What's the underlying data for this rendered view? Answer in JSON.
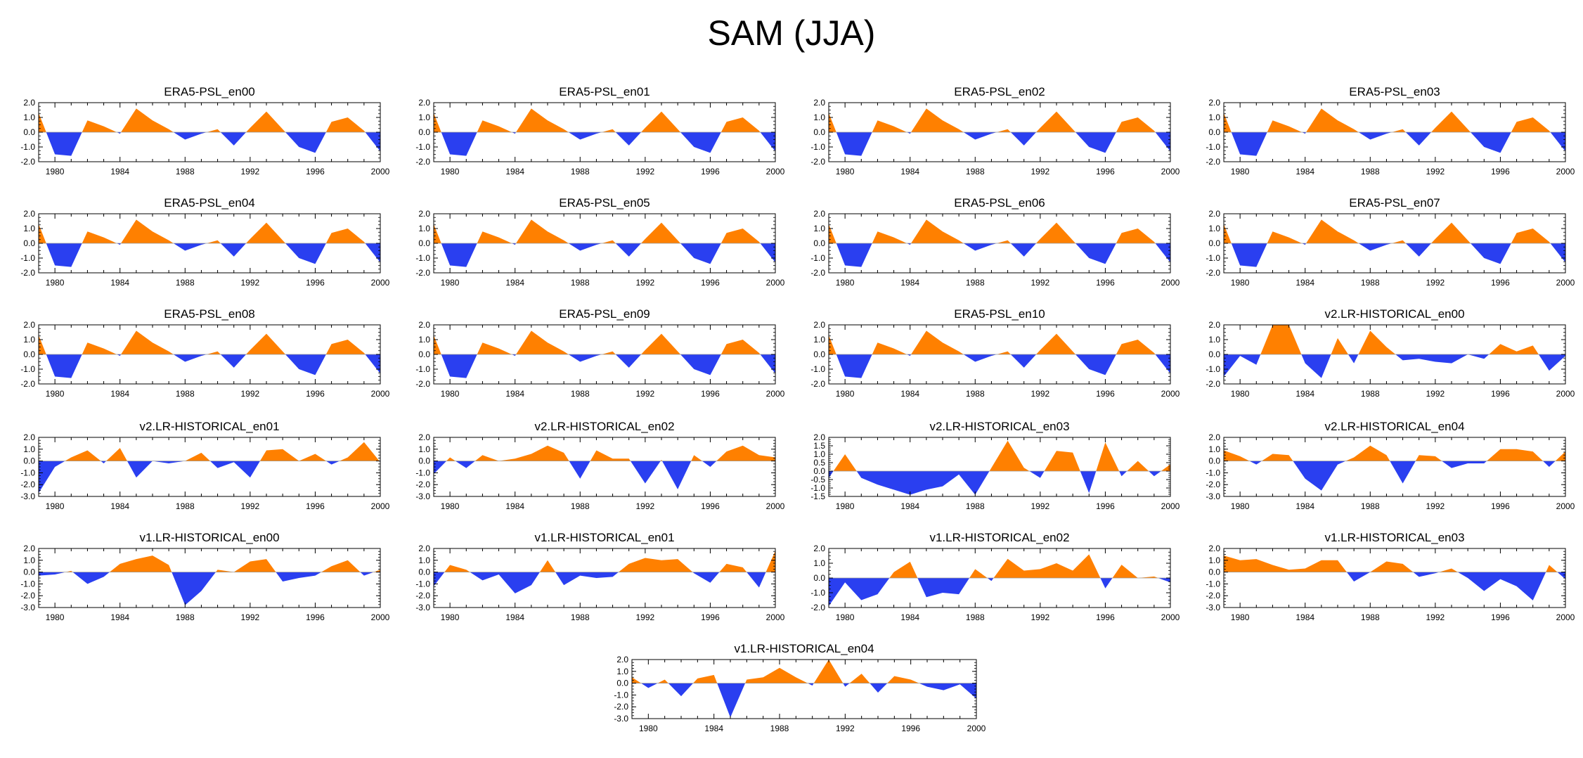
{
  "title": "SAM (JJA)",
  "colors": {
    "positive": "#ff8000",
    "negative": "#2a3ff0",
    "axis": "#000000"
  },
  "x_tick_labels": [
    "1980",
    "1984",
    "1988",
    "1992",
    "1996",
    "2000"
  ],
  "chart_data": [
    {
      "type": "area",
      "title": "ERA5-PSL_en00",
      "xlim": [
        1979,
        2000
      ],
      "ylim": [
        -2,
        2
      ],
      "yticks": [
        "2.0",
        "1.0",
        "0.0",
        "-1.0",
        "-2.0"
      ],
      "x": [
        1979,
        1980,
        1981,
        1982,
        1983,
        1984,
        1985,
        1986,
        1987,
        1988,
        1989,
        1990,
        1991,
        1992,
        1993,
        1994,
        1995,
        1996,
        1997,
        1998,
        1999,
        2000
      ],
      "values": [
        1.3,
        -1.5,
        -1.6,
        0.8,
        0.4,
        -0.1,
        1.6,
        0.8,
        0.2,
        -0.5,
        -0.1,
        0.2,
        -0.9,
        0.3,
        1.4,
        0.2,
        -1.0,
        -1.4,
        0.7,
        1.0,
        0.1,
        -1.3
      ]
    },
    {
      "type": "area",
      "title": "ERA5-PSL_en01",
      "xlim": [
        1979,
        2000
      ],
      "ylim": [
        -2,
        2
      ],
      "yticks": [
        "2.0",
        "1.0",
        "0.0",
        "-1.0",
        "-2.0"
      ],
      "x": [
        1979,
        1980,
        1981,
        1982,
        1983,
        1984,
        1985,
        1986,
        1987,
        1988,
        1989,
        1990,
        1991,
        1992,
        1993,
        1994,
        1995,
        1996,
        1997,
        1998,
        1999,
        2000
      ],
      "values": [
        1.3,
        -1.5,
        -1.6,
        0.8,
        0.4,
        -0.1,
        1.6,
        0.8,
        0.2,
        -0.5,
        -0.1,
        0.2,
        -0.9,
        0.3,
        1.4,
        0.2,
        -1.0,
        -1.4,
        0.7,
        1.0,
        0.1,
        -1.3
      ]
    },
    {
      "type": "area",
      "title": "ERA5-PSL_en02",
      "xlim": [
        1979,
        2000
      ],
      "ylim": [
        -2,
        2
      ],
      "yticks": [
        "2.0",
        "1.0",
        "0.0",
        "-1.0",
        "-2.0"
      ],
      "x": [
        1979,
        1980,
        1981,
        1982,
        1983,
        1984,
        1985,
        1986,
        1987,
        1988,
        1989,
        1990,
        1991,
        1992,
        1993,
        1994,
        1995,
        1996,
        1997,
        1998,
        1999,
        2000
      ],
      "values": [
        1.3,
        -1.5,
        -1.6,
        0.8,
        0.4,
        -0.1,
        1.6,
        0.8,
        0.2,
        -0.5,
        -0.1,
        0.2,
        -0.9,
        0.3,
        1.4,
        0.2,
        -1.0,
        -1.4,
        0.7,
        1.0,
        0.1,
        -1.3
      ]
    },
    {
      "type": "area",
      "title": "ERA5-PSL_en03",
      "xlim": [
        1979,
        2000
      ],
      "ylim": [
        -2,
        2
      ],
      "yticks": [
        "2.0",
        "1.0",
        "0.0",
        "-1.0",
        "-2.0"
      ],
      "x": [
        1979,
        1980,
        1981,
        1982,
        1983,
        1984,
        1985,
        1986,
        1987,
        1988,
        1989,
        1990,
        1991,
        1992,
        1993,
        1994,
        1995,
        1996,
        1997,
        1998,
        1999,
        2000
      ],
      "values": [
        1.3,
        -1.5,
        -1.6,
        0.8,
        0.4,
        -0.1,
        1.6,
        0.8,
        0.2,
        -0.5,
        -0.1,
        0.2,
        -0.9,
        0.3,
        1.4,
        0.2,
        -1.0,
        -1.4,
        0.7,
        1.0,
        0.1,
        -1.3
      ]
    },
    {
      "type": "area",
      "title": "ERA5-PSL_en04",
      "xlim": [
        1979,
        2000
      ],
      "ylim": [
        -2,
        2
      ],
      "yticks": [
        "2.0",
        "1.0",
        "0.0",
        "-1.0",
        "-2.0"
      ],
      "x": [
        1979,
        1980,
        1981,
        1982,
        1983,
        1984,
        1985,
        1986,
        1987,
        1988,
        1989,
        1990,
        1991,
        1992,
        1993,
        1994,
        1995,
        1996,
        1997,
        1998,
        1999,
        2000
      ],
      "values": [
        1.3,
        -1.5,
        -1.6,
        0.8,
        0.4,
        -0.1,
        1.6,
        0.8,
        0.2,
        -0.5,
        -0.1,
        0.2,
        -0.9,
        0.3,
        1.4,
        0.2,
        -1.0,
        -1.4,
        0.7,
        1.0,
        0.1,
        -1.3
      ]
    },
    {
      "type": "area",
      "title": "ERA5-PSL_en05",
      "xlim": [
        1979,
        2000
      ],
      "ylim": [
        -2,
        2
      ],
      "yticks": [
        "2.0",
        "1.0",
        "0.0",
        "-1.0",
        "-2.0"
      ],
      "x": [
        1979,
        1980,
        1981,
        1982,
        1983,
        1984,
        1985,
        1986,
        1987,
        1988,
        1989,
        1990,
        1991,
        1992,
        1993,
        1994,
        1995,
        1996,
        1997,
        1998,
        1999,
        2000
      ],
      "values": [
        1.3,
        -1.5,
        -1.6,
        0.8,
        0.4,
        -0.1,
        1.6,
        0.8,
        0.2,
        -0.5,
        -0.1,
        0.2,
        -0.9,
        0.3,
        1.4,
        0.2,
        -1.0,
        -1.4,
        0.7,
        1.0,
        0.1,
        -1.3
      ]
    },
    {
      "type": "area",
      "title": "ERA5-PSL_en06",
      "xlim": [
        1979,
        2000
      ],
      "ylim": [
        -2,
        2
      ],
      "yticks": [
        "2.0",
        "1.0",
        "0.0",
        "-1.0",
        "-2.0"
      ],
      "x": [
        1979,
        1980,
        1981,
        1982,
        1983,
        1984,
        1985,
        1986,
        1987,
        1988,
        1989,
        1990,
        1991,
        1992,
        1993,
        1994,
        1995,
        1996,
        1997,
        1998,
        1999,
        2000
      ],
      "values": [
        1.3,
        -1.5,
        -1.6,
        0.8,
        0.4,
        -0.1,
        1.6,
        0.8,
        0.2,
        -0.5,
        -0.1,
        0.2,
        -0.9,
        0.3,
        1.4,
        0.2,
        -1.0,
        -1.4,
        0.7,
        1.0,
        0.1,
        -1.3
      ]
    },
    {
      "type": "area",
      "title": "ERA5-PSL_en07",
      "xlim": [
        1979,
        2000
      ],
      "ylim": [
        -2,
        2
      ],
      "yticks": [
        "2.0",
        "1.0",
        "0.0",
        "-1.0",
        "-2.0"
      ],
      "x": [
        1979,
        1980,
        1981,
        1982,
        1983,
        1984,
        1985,
        1986,
        1987,
        1988,
        1989,
        1990,
        1991,
        1992,
        1993,
        1994,
        1995,
        1996,
        1997,
        1998,
        1999,
        2000
      ],
      "values": [
        1.3,
        -1.5,
        -1.6,
        0.8,
        0.4,
        -0.1,
        1.6,
        0.8,
        0.2,
        -0.5,
        -0.1,
        0.2,
        -0.9,
        0.3,
        1.4,
        0.2,
        -1.0,
        -1.4,
        0.7,
        1.0,
        0.1,
        -1.3
      ]
    },
    {
      "type": "area",
      "title": "ERA5-PSL_en08",
      "xlim": [
        1979,
        2000
      ],
      "ylim": [
        -2,
        2
      ],
      "yticks": [
        "2.0",
        "1.0",
        "0.0",
        "-1.0",
        "-2.0"
      ],
      "x": [
        1979,
        1980,
        1981,
        1982,
        1983,
        1984,
        1985,
        1986,
        1987,
        1988,
        1989,
        1990,
        1991,
        1992,
        1993,
        1994,
        1995,
        1996,
        1997,
        1998,
        1999,
        2000
      ],
      "values": [
        1.3,
        -1.5,
        -1.6,
        0.8,
        0.4,
        -0.1,
        1.6,
        0.8,
        0.2,
        -0.5,
        -0.1,
        0.2,
        -0.9,
        0.3,
        1.4,
        0.2,
        -1.0,
        -1.4,
        0.7,
        1.0,
        0.1,
        -1.3
      ]
    },
    {
      "type": "area",
      "title": "ERA5-PSL_en09",
      "xlim": [
        1979,
        2000
      ],
      "ylim": [
        -2,
        2
      ],
      "yticks": [
        "2.0",
        "1.0",
        "0.0",
        "-1.0",
        "-2.0"
      ],
      "x": [
        1979,
        1980,
        1981,
        1982,
        1983,
        1984,
        1985,
        1986,
        1987,
        1988,
        1989,
        1990,
        1991,
        1992,
        1993,
        1994,
        1995,
        1996,
        1997,
        1998,
        1999,
        2000
      ],
      "values": [
        1.3,
        -1.5,
        -1.6,
        0.8,
        0.4,
        -0.1,
        1.6,
        0.8,
        0.2,
        -0.5,
        -0.1,
        0.2,
        -0.9,
        0.3,
        1.4,
        0.2,
        -1.0,
        -1.4,
        0.7,
        1.0,
        0.1,
        -1.3
      ]
    },
    {
      "type": "area",
      "title": "ERA5-PSL_en10",
      "xlim": [
        1979,
        2000
      ],
      "ylim": [
        -2,
        2
      ],
      "yticks": [
        "2.0",
        "1.0",
        "0.0",
        "-1.0",
        "-2.0"
      ],
      "x": [
        1979,
        1980,
        1981,
        1982,
        1983,
        1984,
        1985,
        1986,
        1987,
        1988,
        1989,
        1990,
        1991,
        1992,
        1993,
        1994,
        1995,
        1996,
        1997,
        1998,
        1999,
        2000
      ],
      "values": [
        1.3,
        -1.5,
        -1.6,
        0.8,
        0.4,
        -0.1,
        1.6,
        0.8,
        0.2,
        -0.5,
        -0.1,
        0.2,
        -0.9,
        0.3,
        1.4,
        0.2,
        -1.0,
        -1.4,
        0.7,
        1.0,
        0.1,
        -1.3
      ]
    },
    {
      "type": "area",
      "title": "v2.LR-HISTORICAL_en00",
      "xlim": [
        1979,
        2000
      ],
      "ylim": [
        -2,
        2
      ],
      "yticks": [
        "2.0",
        "1.0",
        "0.0",
        "-1.0",
        "-2.0"
      ],
      "x": [
        1979,
        1980,
        1981,
        1982,
        1983,
        1984,
        1985,
        1986,
        1987,
        1988,
        1989,
        1990,
        1991,
        1992,
        1993,
        1994,
        1995,
        1996,
        1997,
        1998,
        1999,
        2000
      ],
      "values": [
        -1.5,
        -0.1,
        -0.7,
        2.0,
        2.0,
        -0.6,
        -1.6,
        1.1,
        -0.6,
        1.6,
        0.5,
        -0.4,
        -0.3,
        -0.5,
        -0.6,
        0.0,
        -0.3,
        0.7,
        0.2,
        0.6,
        -1.1,
        -0.1
      ]
    },
    {
      "type": "area",
      "title": "v2.LR-HISTORICAL_en01",
      "xlim": [
        1979,
        2000
      ],
      "ylim": [
        -3,
        2
      ],
      "yticks": [
        "2.0",
        "1.0",
        "0.0",
        "-1.0",
        "-2.0",
        "-3.0"
      ],
      "x": [
        1979,
        1980,
        1981,
        1982,
        1983,
        1984,
        1985,
        1986,
        1987,
        1988,
        1989,
        1990,
        1991,
        1992,
        1993,
        1994,
        1995,
        1996,
        1997,
        1998,
        1999,
        2000
      ],
      "values": [
        -2.7,
        -0.5,
        0.3,
        0.9,
        -0.2,
        1.1,
        -1.4,
        0.0,
        -0.2,
        0.0,
        0.7,
        -0.6,
        -0.1,
        -1.4,
        0.9,
        1.0,
        0.0,
        0.6,
        -0.3,
        0.3,
        1.6,
        -0.1
      ]
    },
    {
      "type": "area",
      "title": "v2.LR-HISTORICAL_en02",
      "xlim": [
        1979,
        2000
      ],
      "ylim": [
        -3,
        2
      ],
      "yticks": [
        "2.0",
        "1.0",
        "0.0",
        "-1.0",
        "-2.0",
        "-3.0"
      ],
      "x": [
        1979,
        1980,
        1981,
        1982,
        1983,
        1984,
        1985,
        1986,
        1987,
        1988,
        1989,
        1990,
        1991,
        1992,
        1993,
        1994,
        1995,
        1996,
        1997,
        1998,
        1999,
        2000
      ],
      "values": [
        -1.1,
        0.3,
        -0.6,
        0.5,
        0.0,
        0.2,
        0.6,
        1.3,
        0.7,
        -1.5,
        0.9,
        0.2,
        0.2,
        -1.9,
        0.1,
        -2.4,
        0.5,
        -0.5,
        0.8,
        1.3,
        0.5,
        0.3
      ]
    },
    {
      "type": "area",
      "title": "v2.LR-HISTORICAL_en03",
      "xlim": [
        1979,
        2000
      ],
      "ylim": [
        -1.5,
        2
      ],
      "yticks": [
        "2.0",
        "1.5",
        "1.0",
        "0.5",
        "0.0",
        "-0.5",
        "-1.0",
        "-1.5"
      ],
      "x": [
        1979,
        1980,
        1981,
        1982,
        1983,
        1984,
        1985,
        1986,
        1987,
        1988,
        1989,
        1990,
        1991,
        1992,
        1993,
        1994,
        1995,
        1996,
        1997,
        1998,
        1999,
        2000
      ],
      "values": [
        -0.4,
        1.0,
        -0.4,
        -0.8,
        -1.1,
        -1.4,
        -1.1,
        -0.9,
        -0.2,
        -1.4,
        0.2,
        1.8,
        0.2,
        -0.4,
        1.2,
        1.1,
        -1.3,
        1.7,
        -0.3,
        0.6,
        -0.3,
        0.4
      ]
    },
    {
      "type": "area",
      "title": "v2.LR-HISTORICAL_en04",
      "xlim": [
        1979,
        2000
      ],
      "ylim": [
        -3,
        2
      ],
      "yticks": [
        "2.0",
        "1.0",
        "0.0",
        "-1.0",
        "-2.0",
        "-3.0"
      ],
      "x": [
        1979,
        1980,
        1981,
        1982,
        1983,
        1984,
        1985,
        1986,
        1987,
        1988,
        1989,
        1990,
        1991,
        1992,
        1993,
        1994,
        1995,
        1996,
        1997,
        1998,
        1999,
        2000
      ],
      "values": [
        0.9,
        0.4,
        -0.3,
        0.6,
        0.5,
        -1.5,
        -2.5,
        -0.3,
        0.3,
        1.3,
        0.5,
        -1.9,
        0.5,
        0.4,
        -0.6,
        -0.2,
        -0.2,
        1.0,
        1.0,
        0.8,
        -0.5,
        0.8
      ]
    },
    {
      "type": "area",
      "title": "v1.LR-HISTORICAL_en00",
      "xlim": [
        1979,
        2000
      ],
      "ylim": [
        -3,
        2
      ],
      "yticks": [
        "2.0",
        "1.0",
        "0.0",
        "-1.0",
        "-2.0",
        "-3.0"
      ],
      "x": [
        1979,
        1980,
        1981,
        1982,
        1983,
        1984,
        1985,
        1986,
        1987,
        1988,
        1989,
        1990,
        1991,
        1992,
        1993,
        1994,
        1995,
        1996,
        1997,
        1998,
        1999,
        2000
      ],
      "values": [
        -0.3,
        -0.2,
        0.1,
        -1.0,
        -0.4,
        0.7,
        1.1,
        1.4,
        0.6,
        -2.8,
        -1.6,
        0.2,
        0.0,
        0.9,
        1.1,
        -0.8,
        -0.5,
        -0.3,
        0.5,
        1.0,
        -0.3,
        0.2
      ]
    },
    {
      "type": "area",
      "title": "v1.LR-HISTORICAL_en01",
      "xlim": [
        1979,
        2000
      ],
      "ylim": [
        -3,
        2
      ],
      "yticks": [
        "2.0",
        "1.0",
        "0.0",
        "-1.0",
        "-2.0",
        "-3.0"
      ],
      "x": [
        1979,
        1980,
        1981,
        1982,
        1983,
        1984,
        1985,
        1986,
        1987,
        1988,
        1989,
        1990,
        1991,
        1992,
        1993,
        1994,
        1995,
        1996,
        1997,
        1998,
        1999,
        2000
      ],
      "values": [
        -1.2,
        0.6,
        0.2,
        -0.7,
        -0.2,
        -1.8,
        -1.1,
        1.0,
        -1.1,
        -0.3,
        -0.5,
        -0.4,
        0.7,
        1.2,
        1.0,
        1.1,
        -0.1,
        -0.9,
        0.7,
        0.4,
        -1.3,
        1.8
      ]
    },
    {
      "type": "area",
      "title": "v1.LR-HISTORICAL_en02",
      "xlim": [
        1979,
        2000
      ],
      "ylim": [
        -2,
        2
      ],
      "yticks": [
        "2.0",
        "1.0",
        "0.0",
        "-1.0",
        "-2.0"
      ],
      "x": [
        1979,
        1980,
        1981,
        1982,
        1983,
        1984,
        1985,
        1986,
        1987,
        1988,
        1989,
        1990,
        1991,
        1992,
        1993,
        1994,
        1995,
        1996,
        1997,
        1998,
        1999,
        2000
      ],
      "values": [
        -1.9,
        -0.3,
        -1.5,
        -1.1,
        0.4,
        1.1,
        -1.3,
        -1.0,
        -1.1,
        0.6,
        -0.2,
        1.3,
        0.5,
        0.6,
        1.0,
        0.5,
        1.6,
        -0.7,
        0.9,
        0.0,
        0.1,
        -0.3
      ]
    },
    {
      "type": "area",
      "title": "v1.LR-HISTORICAL_en03",
      "xlim": [
        1979,
        2000
      ],
      "ylim": [
        -3,
        2
      ],
      "yticks": [
        "2.0",
        "1.0",
        "0.0",
        "-1.0",
        "-2.0",
        "-3.0"
      ],
      "x": [
        1979,
        1980,
        1981,
        1982,
        1983,
        1984,
        1985,
        1986,
        1987,
        1988,
        1989,
        1990,
        1991,
        1992,
        1993,
        1994,
        1995,
        1996,
        1997,
        1998,
        1999,
        2000
      ],
      "values": [
        1.4,
        1.0,
        1.1,
        0.6,
        0.2,
        0.3,
        1.0,
        1.0,
        -0.8,
        0.0,
        0.9,
        0.7,
        -0.4,
        -0.1,
        0.3,
        -0.5,
        -1.6,
        -0.6,
        -1.2,
        -2.4,
        0.6,
        -0.6
      ]
    },
    {
      "type": "area",
      "title": "v1.LR-HISTORICAL_en04",
      "xlim": [
        1979,
        2000
      ],
      "ylim": [
        -3,
        2
      ],
      "yticks": [
        "2.0",
        "1.0",
        "0.0",
        "-1.0",
        "-2.0",
        "-3.0"
      ],
      "x": [
        1979,
        1980,
        1981,
        1982,
        1983,
        1984,
        1985,
        1986,
        1987,
        1988,
        1989,
        1990,
        1991,
        1992,
        1993,
        1994,
        1995,
        1996,
        1997,
        1998,
        1999,
        2000
      ],
      "values": [
        0.5,
        -0.4,
        0.3,
        -1.1,
        0.4,
        0.7,
        -2.9,
        0.3,
        0.5,
        1.3,
        0.5,
        -0.2,
        2.0,
        -0.3,
        0.8,
        -0.8,
        0.6,
        0.3,
        -0.3,
        -0.6,
        -0.1,
        -1.3
      ]
    }
  ]
}
